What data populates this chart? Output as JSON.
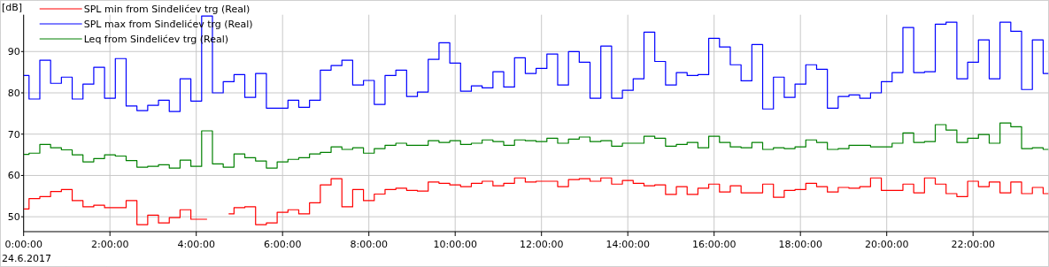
{
  "chart_data": {
    "type": "step",
    "ylabel": "[dB]",
    "legend": "top left",
    "grid": true,
    "marker": "none",
    "line_style": "solid",
    "xlim": [
      0,
      23.75
    ],
    "ylim": [
      46.4,
      98.9
    ],
    "yticks": [
      50,
      60,
      70,
      80,
      90
    ],
    "xticks": [
      {
        "value": 0,
        "label": "0:00:00"
      },
      {
        "value": 2,
        "label": "2:00:00"
      },
      {
        "value": 4,
        "label": "4:00:00"
      },
      {
        "value": 6,
        "label": "6:00:00"
      },
      {
        "value": 8,
        "label": "8:00:00"
      },
      {
        "value": 10,
        "label": "10:00:00"
      },
      {
        "value": 12,
        "label": "12:00:00"
      },
      {
        "value": 14,
        "label": "14:00:00"
      },
      {
        "value": 16,
        "label": "16:00:00"
      },
      {
        "value": 18,
        "label": "18:00:00"
      },
      {
        "value": 20,
        "label": "20:00:00"
      },
      {
        "value": 22,
        "label": "22:00:00"
      }
    ],
    "annotations": [
      "24.6.2017"
    ],
    "x": [
      0,
      0.25,
      0.5,
      0.75,
      1,
      1.25,
      1.5,
      1.75,
      2,
      2.25,
      2.5,
      2.75,
      3,
      3.25,
      3.5,
      3.75,
      4,
      4.25,
      4.5,
      4.75,
      5,
      5.25,
      5.5,
      5.75,
      6,
      6.25,
      6.5,
      6.75,
      7,
      7.25,
      7.5,
      7.75,
      8,
      8.25,
      8.5,
      8.75,
      9,
      9.25,
      9.5,
      9.75,
      10,
      10.25,
      10.5,
      10.75,
      11,
      11.25,
      11.5,
      11.75,
      12,
      12.25,
      12.5,
      12.75,
      13,
      13.25,
      13.5,
      13.75,
      14,
      14.25,
      14.5,
      14.75,
      15,
      15.25,
      15.5,
      15.75,
      16,
      16.25,
      16.5,
      16.75,
      17,
      17.25,
      17.5,
      17.75,
      18,
      18.25,
      18.5,
      18.75,
      19,
      19.25,
      19.5,
      19.75,
      20,
      20.25,
      20.5,
      20.75,
      21,
      21.25,
      21.5,
      21.75,
      22,
      22.25,
      22.5,
      22.75,
      23,
      23.25,
      23.5,
      23.75
    ],
    "series": [
      {
        "name": "SPL min from Sinđelićev trg (Real)",
        "color": "#ff0000",
        "values": [
          51.9,
          54.4,
          54.9,
          56.1,
          56.6,
          53.9,
          52.4,
          52.8,
          52.2,
          52.2,
          53.9,
          48.1,
          50.4,
          48.5,
          49.8,
          51.7,
          49.4,
          49.4,
          null,
          50.7,
          52.2,
          52.4,
          48.1,
          48.5,
          51.1,
          51.7,
          50.7,
          53.4,
          57.7,
          59.2,
          52.4,
          56.6,
          53.9,
          55.5,
          56.6,
          56.9,
          56.4,
          56.2,
          58.4,
          58.1,
          57.7,
          57.3,
          58.1,
          58.6,
          57.5,
          58.1,
          59.4,
          58.4,
          58.6,
          58.6,
          57.3,
          59.0,
          59.2,
          58.6,
          59.4,
          57.9,
          58.8,
          58.1,
          57.5,
          57.7,
          55.4,
          57.3,
          55.4,
          56.9,
          57.9,
          56.0,
          57.5,
          55.8,
          55.8,
          57.9,
          54.7,
          56.4,
          56.6,
          58.1,
          57.3,
          56.0,
          57.1,
          56.9,
          57.3,
          59.4,
          56.4,
          56.4,
          57.9,
          55.8,
          59.4,
          57.9,
          55.6,
          54.9,
          58.6,
          57.3,
          58.4,
          55.8,
          58.4,
          55.6,
          57.1,
          55.6
        ]
      },
      {
        "name": "SPL max from Sinđelićev trg (Real)",
        "color": "#0000ff",
        "values": [
          84.2,
          78.5,
          87.9,
          82.3,
          83.8,
          78.5,
          82.1,
          86.2,
          78.7,
          88.3,
          76.8,
          75.7,
          77.0,
          78.2,
          75.5,
          83.4,
          78.0,
          98.6,
          80.0,
          82.7,
          84.4,
          78.9,
          84.7,
          76.3,
          76.3,
          78.2,
          76.5,
          78.2,
          85.5,
          86.6,
          87.9,
          81.9,
          83.0,
          77.2,
          84.2,
          85.5,
          79.1,
          80.2,
          88.1,
          92.1,
          87.2,
          80.4,
          81.7,
          81.2,
          85.1,
          81.4,
          88.5,
          84.7,
          85.9,
          89.4,
          81.9,
          90.0,
          87.4,
          78.7,
          91.3,
          78.7,
          80.6,
          83.4,
          94.7,
          87.6,
          81.9,
          84.9,
          84.2,
          84.4,
          93.2,
          91.1,
          86.8,
          82.9,
          91.7,
          76.1,
          83.8,
          78.9,
          82.1,
          86.8,
          85.7,
          76.3,
          79.1,
          79.5,
          78.7,
          80.0,
          82.7,
          84.9,
          95.8,
          84.9,
          85.1,
          96.6,
          97.1,
          83.4,
          87.4,
          92.8,
          83.4,
          97.1,
          94.9,
          80.8,
          92.8,
          84.7
        ]
      },
      {
        "name": "Leq from Sinđelićev trg (Real)",
        "color": "#008000",
        "values": [
          65.1,
          65.4,
          67.5,
          66.7,
          66.2,
          65.0,
          63.3,
          64.1,
          65.0,
          64.7,
          63.6,
          62.0,
          62.2,
          62.6,
          61.8,
          63.7,
          62.2,
          70.8,
          62.8,
          62.0,
          65.2,
          64.3,
          63.5,
          61.8,
          63.3,
          63.9,
          64.3,
          65.2,
          65.6,
          66.9,
          66.3,
          66.7,
          65.4,
          66.5,
          67.3,
          67.8,
          67.3,
          67.3,
          68.4,
          68.0,
          68.4,
          67.5,
          67.8,
          68.6,
          68.2,
          67.3,
          68.6,
          68.4,
          68.2,
          69.0,
          67.8,
          68.8,
          69.3,
          68.2,
          68.4,
          67.1,
          67.8,
          67.8,
          69.5,
          69.0,
          67.1,
          67.5,
          68.0,
          66.7,
          69.5,
          68.0,
          66.9,
          66.7,
          68.0,
          66.3,
          66.7,
          66.5,
          66.9,
          68.6,
          68.0,
          66.3,
          66.5,
          67.3,
          67.3,
          66.9,
          66.9,
          67.8,
          70.3,
          68.0,
          68.2,
          72.3,
          71.0,
          68.0,
          69.0,
          69.9,
          67.8,
          72.7,
          71.8,
          66.5,
          66.7,
          66.3
        ]
      }
    ]
  }
}
